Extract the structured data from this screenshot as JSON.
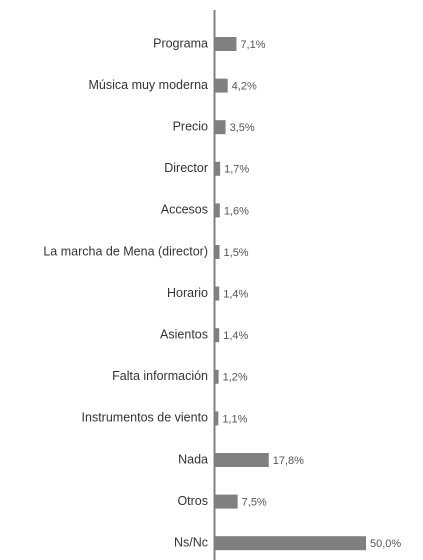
{
  "chart_data": {
    "type": "bar",
    "orientation": "horizontal",
    "categories": [
      "Programa",
      "Música muy moderna",
      "Precio",
      "Director",
      "Accesos",
      "La marcha de Mena (director)",
      "Horario",
      "Asientos",
      "Falta información",
      "Instrumentos de viento",
      "Nada",
      "Otros",
      "Ns/Nc"
    ],
    "values": [
      7.1,
      4.2,
      3.5,
      1.7,
      1.6,
      1.5,
      1.4,
      1.4,
      1.2,
      1.1,
      17.8,
      7.5,
      50.0
    ],
    "value_labels": [
      "7,1%",
      "4,2%",
      "3,5%",
      "1,7%",
      "1,6%",
      "1,5%",
      "1,4%",
      "1,4%",
      "1,2%",
      "1,1%",
      "17,8%",
      "7,5%",
      "50,0%"
    ],
    "color": "#808080"
  }
}
